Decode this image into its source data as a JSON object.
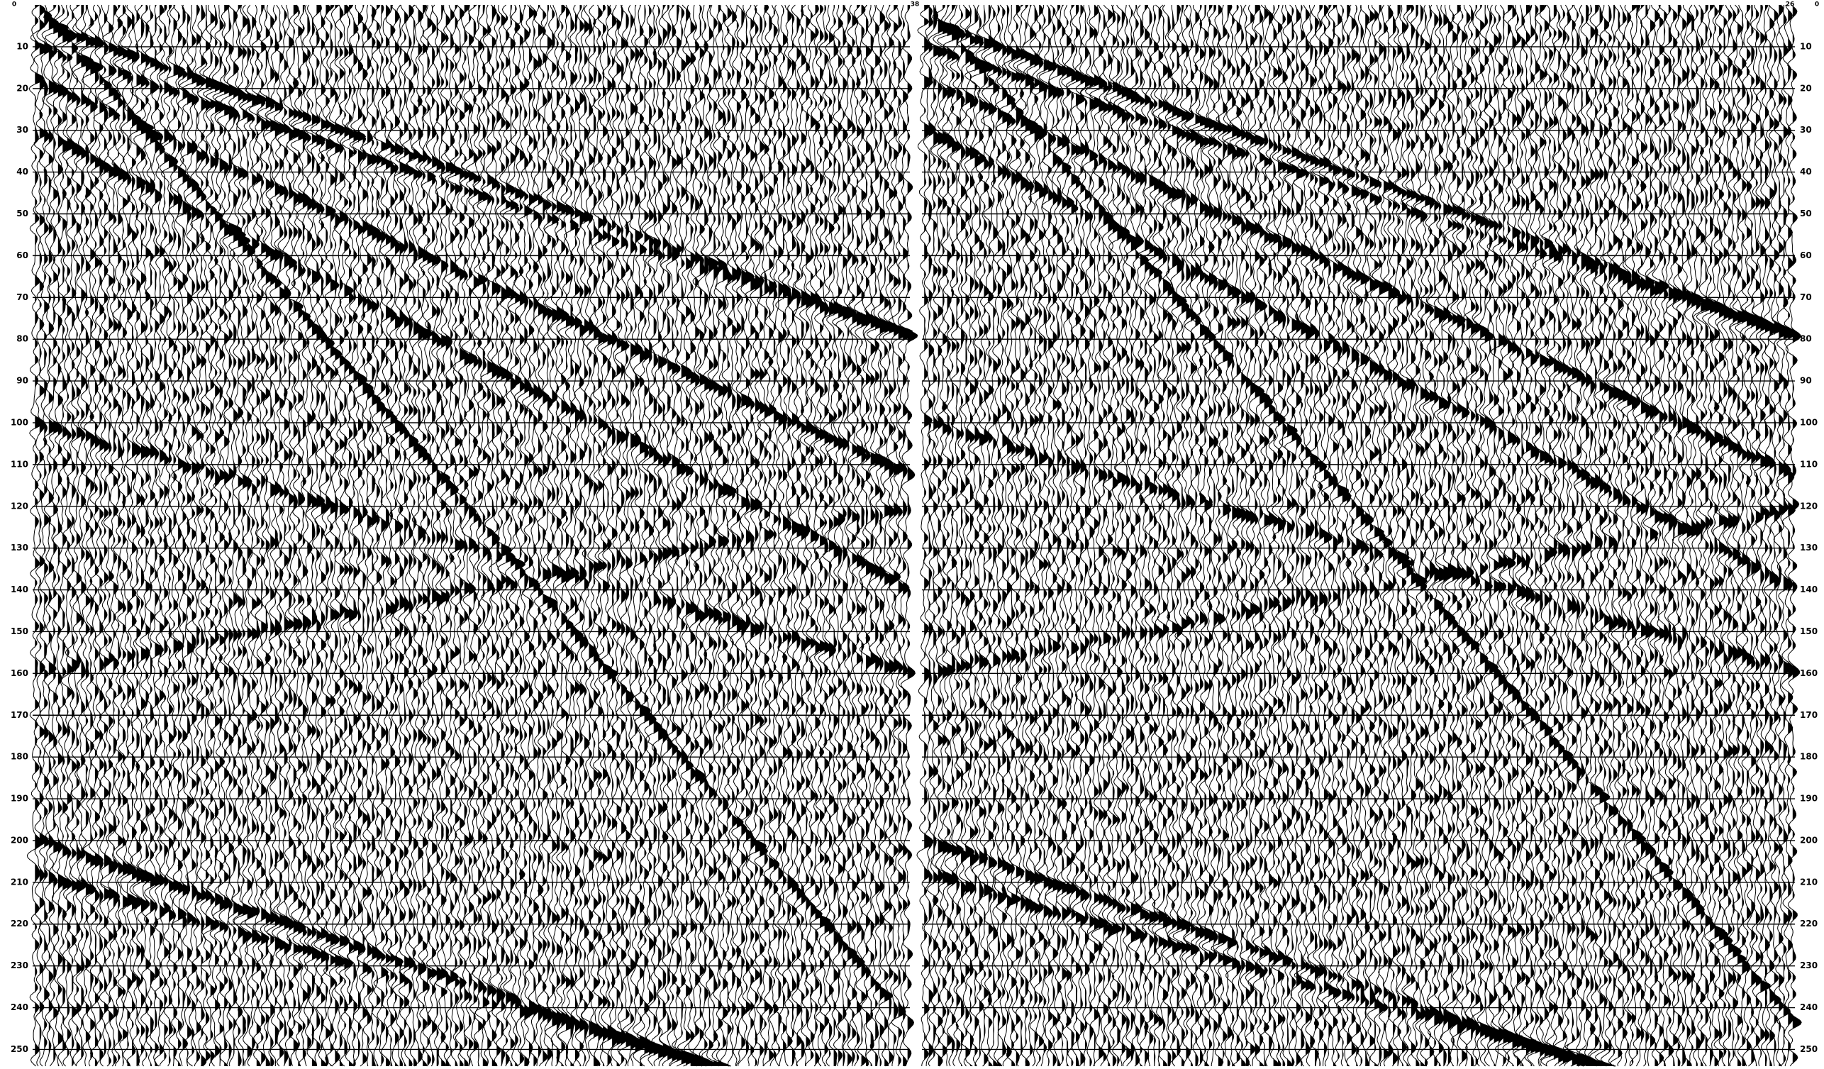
{
  "chart_data": {
    "type": "seismic",
    "top_labels": [
      "0",
      "38",
      "26",
      "0"
    ],
    "ylim": [
      0,
      254
    ],
    "yticks": [
      10,
      20,
      30,
      40,
      50,
      60,
      70,
      80,
      90,
      100,
      110,
      120,
      130,
      140,
      150,
      160,
      170,
      180,
      190,
      200,
      210,
      220,
      230,
      240,
      250
    ],
    "grid": true
  }
}
